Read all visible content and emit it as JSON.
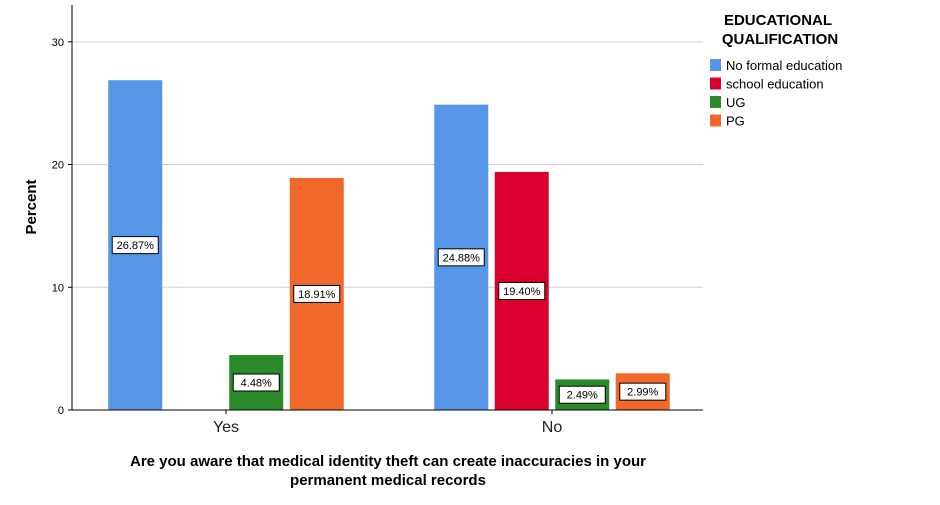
{
  "chart_data": {
    "type": "bar",
    "categories": [
      "Yes",
      "No"
    ],
    "series": [
      {
        "name": "No formal education",
        "color": "#5596e6",
        "values": [
          26.87,
          24.88
        ],
        "labels": [
          "26.87%",
          "24.88%"
        ]
      },
      {
        "name": "school education",
        "color": "#d9002e",
        "values": [
          null,
          19.4
        ],
        "labels": [
          null,
          "19.40%"
        ]
      },
      {
        "name": "UG",
        "color": "#2a8a2a",
        "values": [
          4.48,
          2.49
        ],
        "labels": [
          "4.48%",
          "2.49%"
        ]
      },
      {
        "name": "PG",
        "color": "#f0692a",
        "values": [
          18.91,
          2.99
        ],
        "labels": [
          "18.91%",
          "2.99%"
        ]
      }
    ],
    "xlabel_lines": [
      "Are you aware that medical identity theft can create inaccuracies in your",
      "permanent medical records"
    ],
    "ylabel": "Percent",
    "ylim": [
      0,
      33
    ],
    "yticks": [
      0,
      10,
      20,
      30
    ],
    "grid": true,
    "legend": {
      "title_lines": [
        "EDUCATIONAL",
        "QUALIFICATION"
      ],
      "placement": "top-right"
    }
  }
}
